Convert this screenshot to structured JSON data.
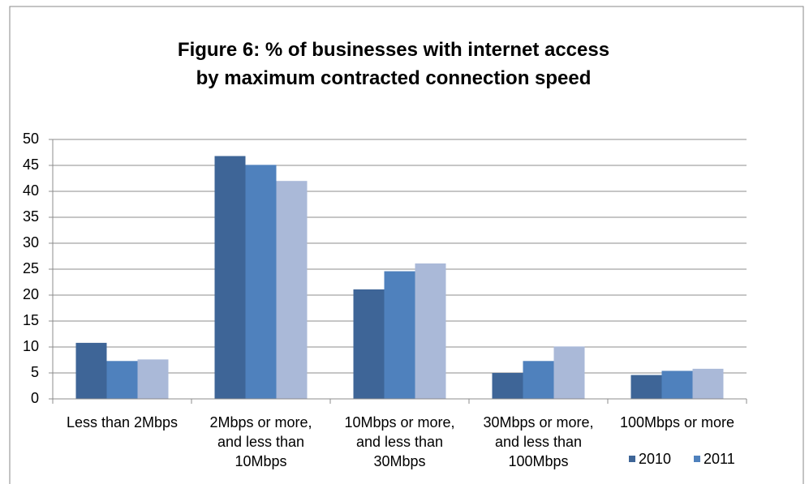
{
  "chart_data": {
    "type": "bar",
    "title": "Figure 6: % of businesses with internet access\nby maximum contracted connection speed",
    "categories": [
      "Less than 2Mbps",
      "2Mbps or more,\nand less than\n10Mbps",
      "10Mbps or more,\nand less than\n30Mbps",
      "30Mbps or more,\nand less than\n100Mbps",
      "100Mbps or more"
    ],
    "series": [
      {
        "name": "2010",
        "color": "#3e6597",
        "values": [
          10.8,
          46.8,
          21.1,
          5.0,
          4.6
        ]
      },
      {
        "name": "2011",
        "color": "#4f81bd",
        "values": [
          7.3,
          45.1,
          24.6,
          7.3,
          5.4
        ]
      },
      {
        "color": "#aab9d8",
        "values": [
          7.6,
          42.0,
          26.1,
          10.1,
          5.8
        ]
      }
    ],
    "ylim": [
      0,
      50
    ],
    "yticks": [
      0,
      5,
      10,
      15,
      20,
      25,
      30,
      35,
      40,
      45,
      50
    ],
    "grid": true,
    "legend": "bottom-right"
  }
}
